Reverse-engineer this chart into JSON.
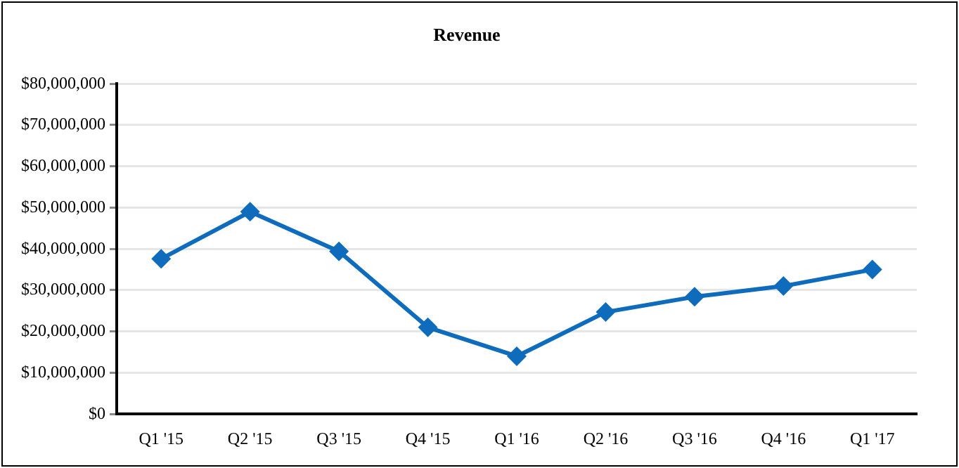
{
  "chart_data": {
    "type": "line",
    "title": "Revenue",
    "categories": [
      "Q1 '15",
      "Q2 '15",
      "Q3 '15",
      "Q4 '15",
      "Q1 '16",
      "Q2 '16",
      "Q3 '16",
      "Q4 '16",
      "Q1 '17"
    ],
    "series": [
      {
        "color": "#0f6cbd",
        "values": [
          37600000,
          49000000,
          39400000,
          21000000,
          14000000,
          24700000,
          28400000,
          31000000,
          35000000
        ]
      }
    ],
    "ylim": [
      0,
      80000000
    ],
    "yticks": [
      {
        "value": 0,
        "label": "$0"
      },
      {
        "value": 10000000,
        "label": "$10,000,000"
      },
      {
        "value": 20000000,
        "label": "$20,000,000"
      },
      {
        "value": 30000000,
        "label": "$30,000,000"
      },
      {
        "value": 40000000,
        "label": "$40,000,000"
      },
      {
        "value": 50000000,
        "label": "$50,000,000"
      },
      {
        "value": 60000000,
        "label": "$60,000,000"
      },
      {
        "value": 70000000,
        "label": "$70,000,000"
      },
      {
        "value": 80000000,
        "label": "$80,000,000"
      }
    ],
    "grid": "y",
    "legend": false,
    "marker": "diamond",
    "line_style": "solid"
  }
}
